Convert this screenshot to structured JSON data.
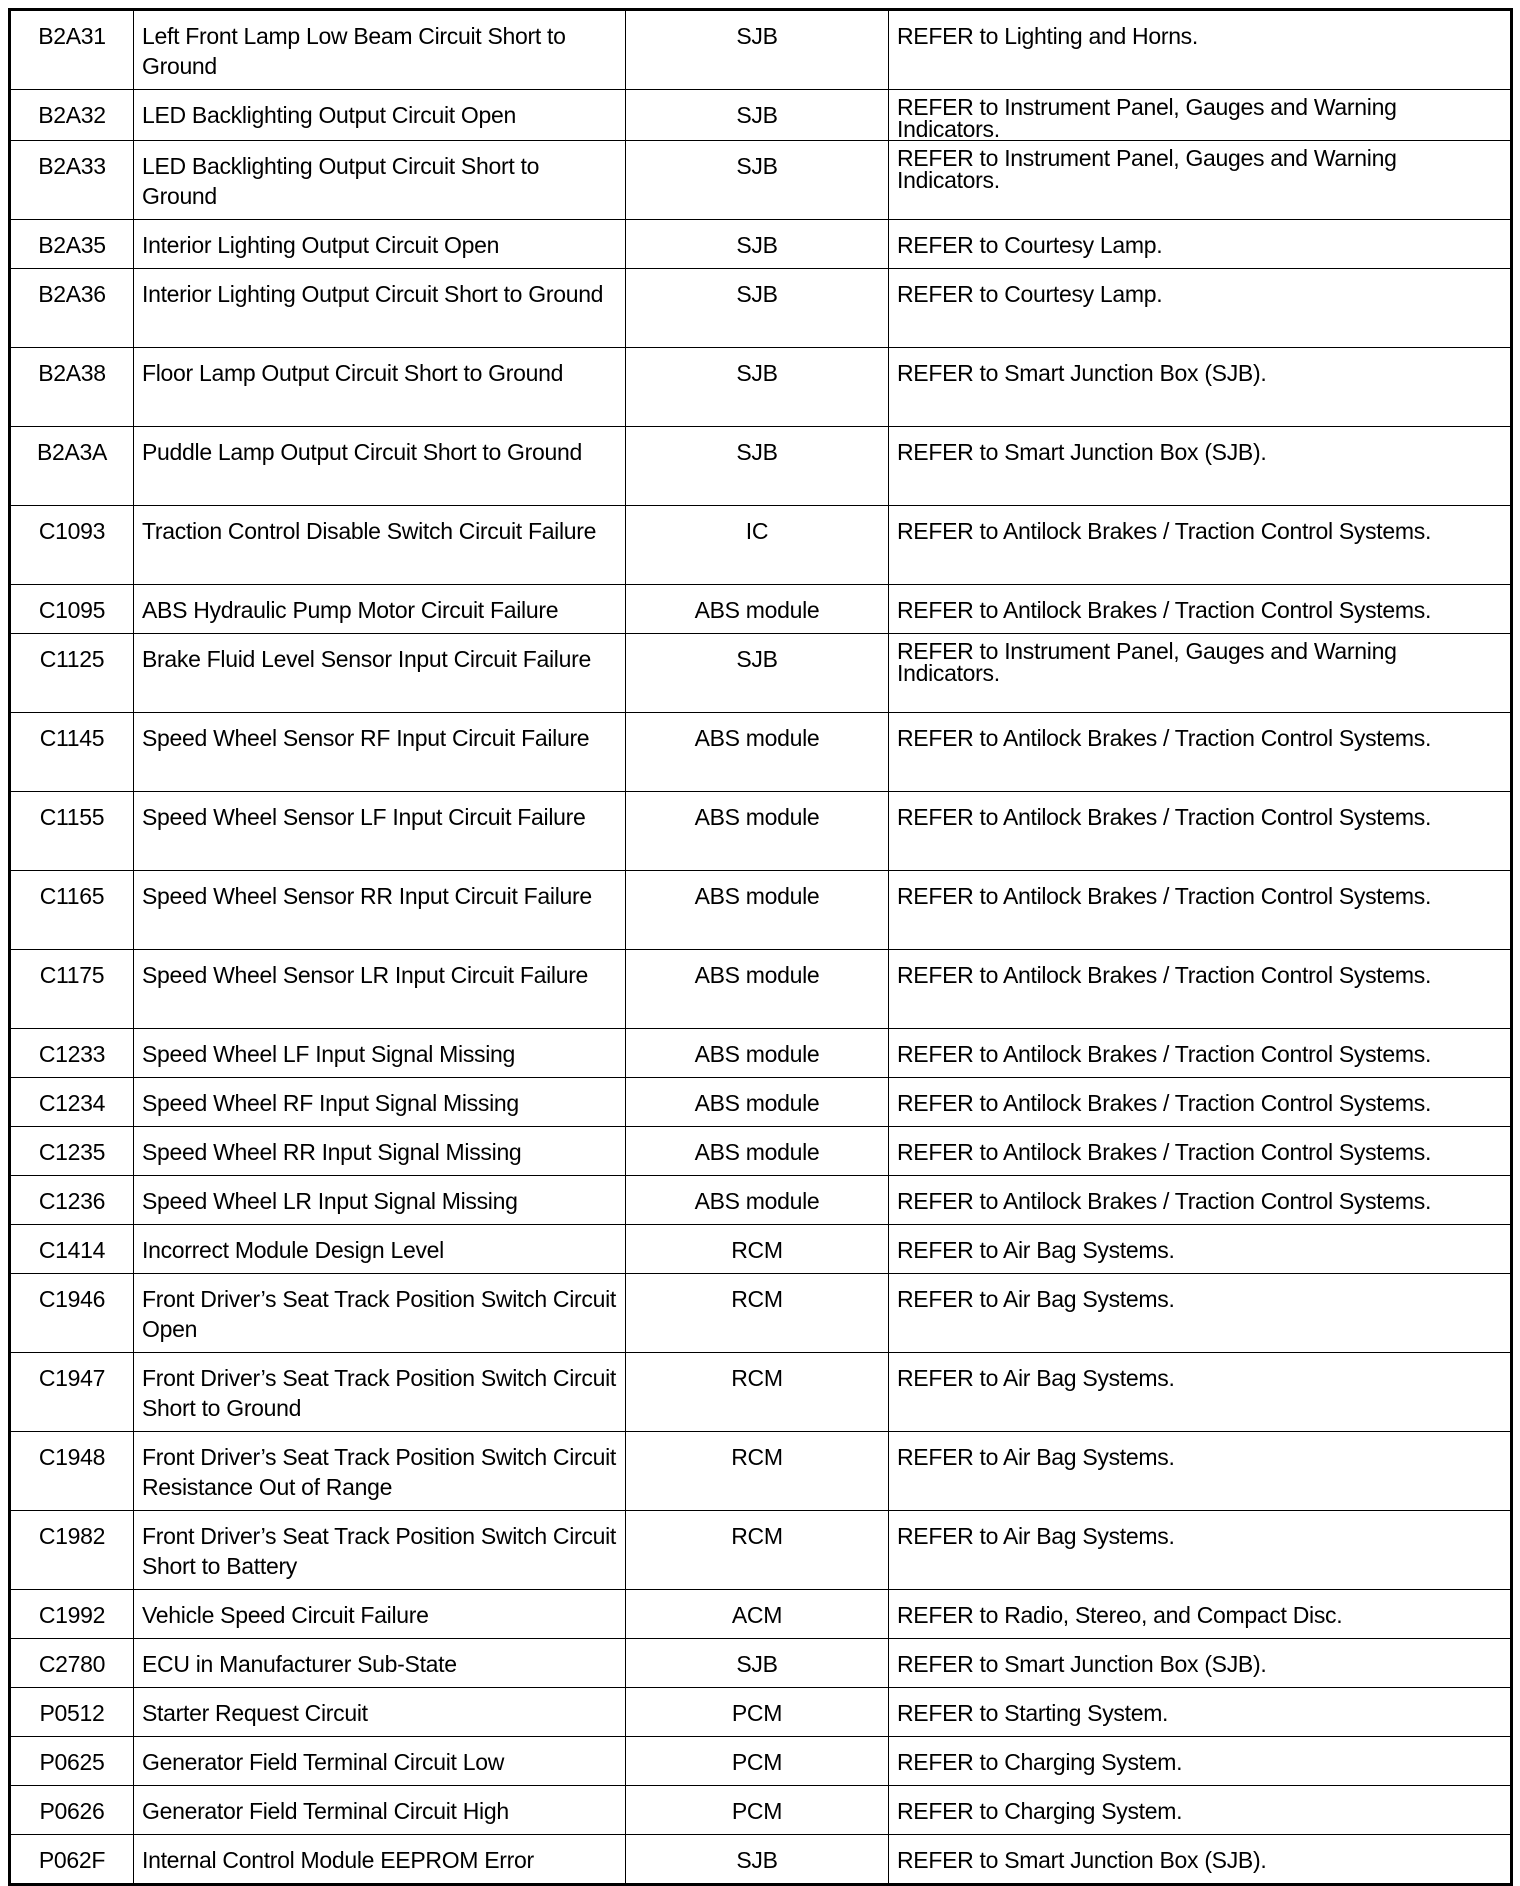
{
  "rows": [
    {
      "code": "B2A31",
      "description": "Left Front Lamp Low Beam Circuit Short to Ground",
      "module": "SJB",
      "action": "REFER to Lighting and Horns.",
      "tall": true
    },
    {
      "code": "B2A32",
      "description": "LED Backlighting Output Circuit Open",
      "module": "SJB",
      "action": "REFER to Instrument Panel, Gauges and Warning Indicators.",
      "tall": false
    },
    {
      "code": "B2A33",
      "description": "LED Backlighting Output Circuit Short to Ground",
      "module": "SJB",
      "action": "REFER to Instrument Panel, Gauges and Warning Indicators.",
      "tall": true
    },
    {
      "code": "B2A35",
      "description": "Interior Lighting Output Circuit Open",
      "module": "SJB",
      "action": "REFER to Courtesy Lamp.",
      "tall": false
    },
    {
      "code": "B2A36",
      "description": "Interior Lighting Output Circuit Short to Ground",
      "module": "SJB",
      "action": "REFER to Courtesy Lamp.",
      "tall": true
    },
    {
      "code": "B2A38",
      "description": "Floor Lamp Output Circuit Short to Ground",
      "module": "SJB",
      "action": "REFER to Smart Junction Box (SJB).",
      "tall": true
    },
    {
      "code": "B2A3A",
      "description": "Puddle Lamp Output Circuit Short to Ground",
      "module": "SJB",
      "action": "REFER to Smart Junction Box (SJB).",
      "tall": true
    },
    {
      "code": "C1093",
      "description": "Traction Control Disable Switch Circuit Failure",
      "module": "IC",
      "action": "REFER to Antilock Brakes / Traction Control Systems.",
      "tall": true
    },
    {
      "code": "C1095",
      "description": "ABS Hydraulic Pump Motor Circuit Failure",
      "module": "ABS module",
      "action": "REFER to Antilock Brakes / Traction Control Systems.",
      "tall": false
    },
    {
      "code": "C1125",
      "description": "Brake Fluid Level Sensor Input Circuit Failure",
      "module": "SJB",
      "action": "REFER to Instrument Panel, Gauges and Warning Indicators.",
      "tall": true
    },
    {
      "code": "C1145",
      "description": "Speed Wheel Sensor RF Input Circuit Failure",
      "module": "ABS module",
      "action": "REFER to Antilock Brakes / Traction Control Systems.",
      "tall": true
    },
    {
      "code": "C1155",
      "description": "Speed Wheel Sensor LF Input Circuit Failure",
      "module": "ABS module",
      "action": "REFER to Antilock Brakes / Traction Control Systems.",
      "tall": true
    },
    {
      "code": "C1165",
      "description": "Speed Wheel Sensor RR Input Circuit Failure",
      "module": "ABS module",
      "action": "REFER to Antilock Brakes / Traction Control Systems.",
      "tall": true
    },
    {
      "code": "C1175",
      "description": "Speed Wheel Sensor LR Input Circuit Failure",
      "module": "ABS module",
      "action": "REFER to Antilock Brakes / Traction Control Systems.",
      "tall": true
    },
    {
      "code": "C1233",
      "description": "Speed Wheel LF Input Signal Missing",
      "module": "ABS module",
      "action": "REFER to Antilock Brakes / Traction Control Systems.",
      "tall": false
    },
    {
      "code": "C1234",
      "description": "Speed Wheel RF Input Signal Missing",
      "module": "ABS module",
      "action": "REFER to Antilock Brakes / Traction Control Systems.",
      "tall": false
    },
    {
      "code": "C1235",
      "description": "Speed Wheel RR Input Signal Missing",
      "module": "ABS module",
      "action": "REFER to Antilock Brakes / Traction Control Systems.",
      "tall": false
    },
    {
      "code": "C1236",
      "description": "Speed Wheel LR Input Signal Missing",
      "module": "ABS module",
      "action": "REFER to Antilock Brakes / Traction Control Systems.",
      "tall": false
    },
    {
      "code": "C1414",
      "description": "Incorrect Module Design Level",
      "module": "RCM",
      "action": "REFER to Air Bag Systems.",
      "tall": false
    },
    {
      "code": "C1946",
      "description": "Front Driver’s Seat Track Position Switch Circuit Open",
      "module": "RCM",
      "action": "REFER to Air Bag Systems.",
      "tall": true
    },
    {
      "code": "C1947",
      "description": "Front Driver’s Seat Track Position Switch Circuit Short to Ground",
      "module": "RCM",
      "action": "REFER to Air Bag Systems.",
      "tall": true
    },
    {
      "code": "C1948",
      "description": "Front Driver’s Seat Track Position Switch Circuit Resistance Out of Range",
      "module": "RCM",
      "action": "REFER to Air Bag Systems.",
      "tall": true
    },
    {
      "code": "C1982",
      "description": "Front Driver’s Seat Track Position Switch Circuit Short to Battery",
      "module": "RCM",
      "action": "REFER to Air Bag Systems.",
      "tall": true
    },
    {
      "code": "C1992",
      "description": "Vehicle Speed Circuit Failure",
      "module": "ACM",
      "action": "REFER to Radio, Stereo, and Compact Disc.",
      "tall": false
    },
    {
      "code": "C2780",
      "description": "ECU in Manufacturer Sub-State",
      "module": "SJB",
      "action": "REFER to Smart Junction Box (SJB).",
      "tall": false
    },
    {
      "code": "P0512",
      "description": "Starter Request Circuit",
      "module": "PCM",
      "action": "REFER to Starting System.",
      "tall": false
    },
    {
      "code": "P0625",
      "description": "Generator Field Terminal Circuit Low",
      "module": "PCM",
      "action": "REFER to Charging System.",
      "tall": false
    },
    {
      "code": "P0626",
      "description": "Generator Field Terminal Circuit High",
      "module": "PCM",
      "action": "REFER to Charging System.",
      "tall": false
    },
    {
      "code": "P062F",
      "description": "Internal Control Module EEPROM Error",
      "module": "SJB",
      "action": "REFER to Smart Junction Box (SJB).",
      "tall": false
    }
  ]
}
